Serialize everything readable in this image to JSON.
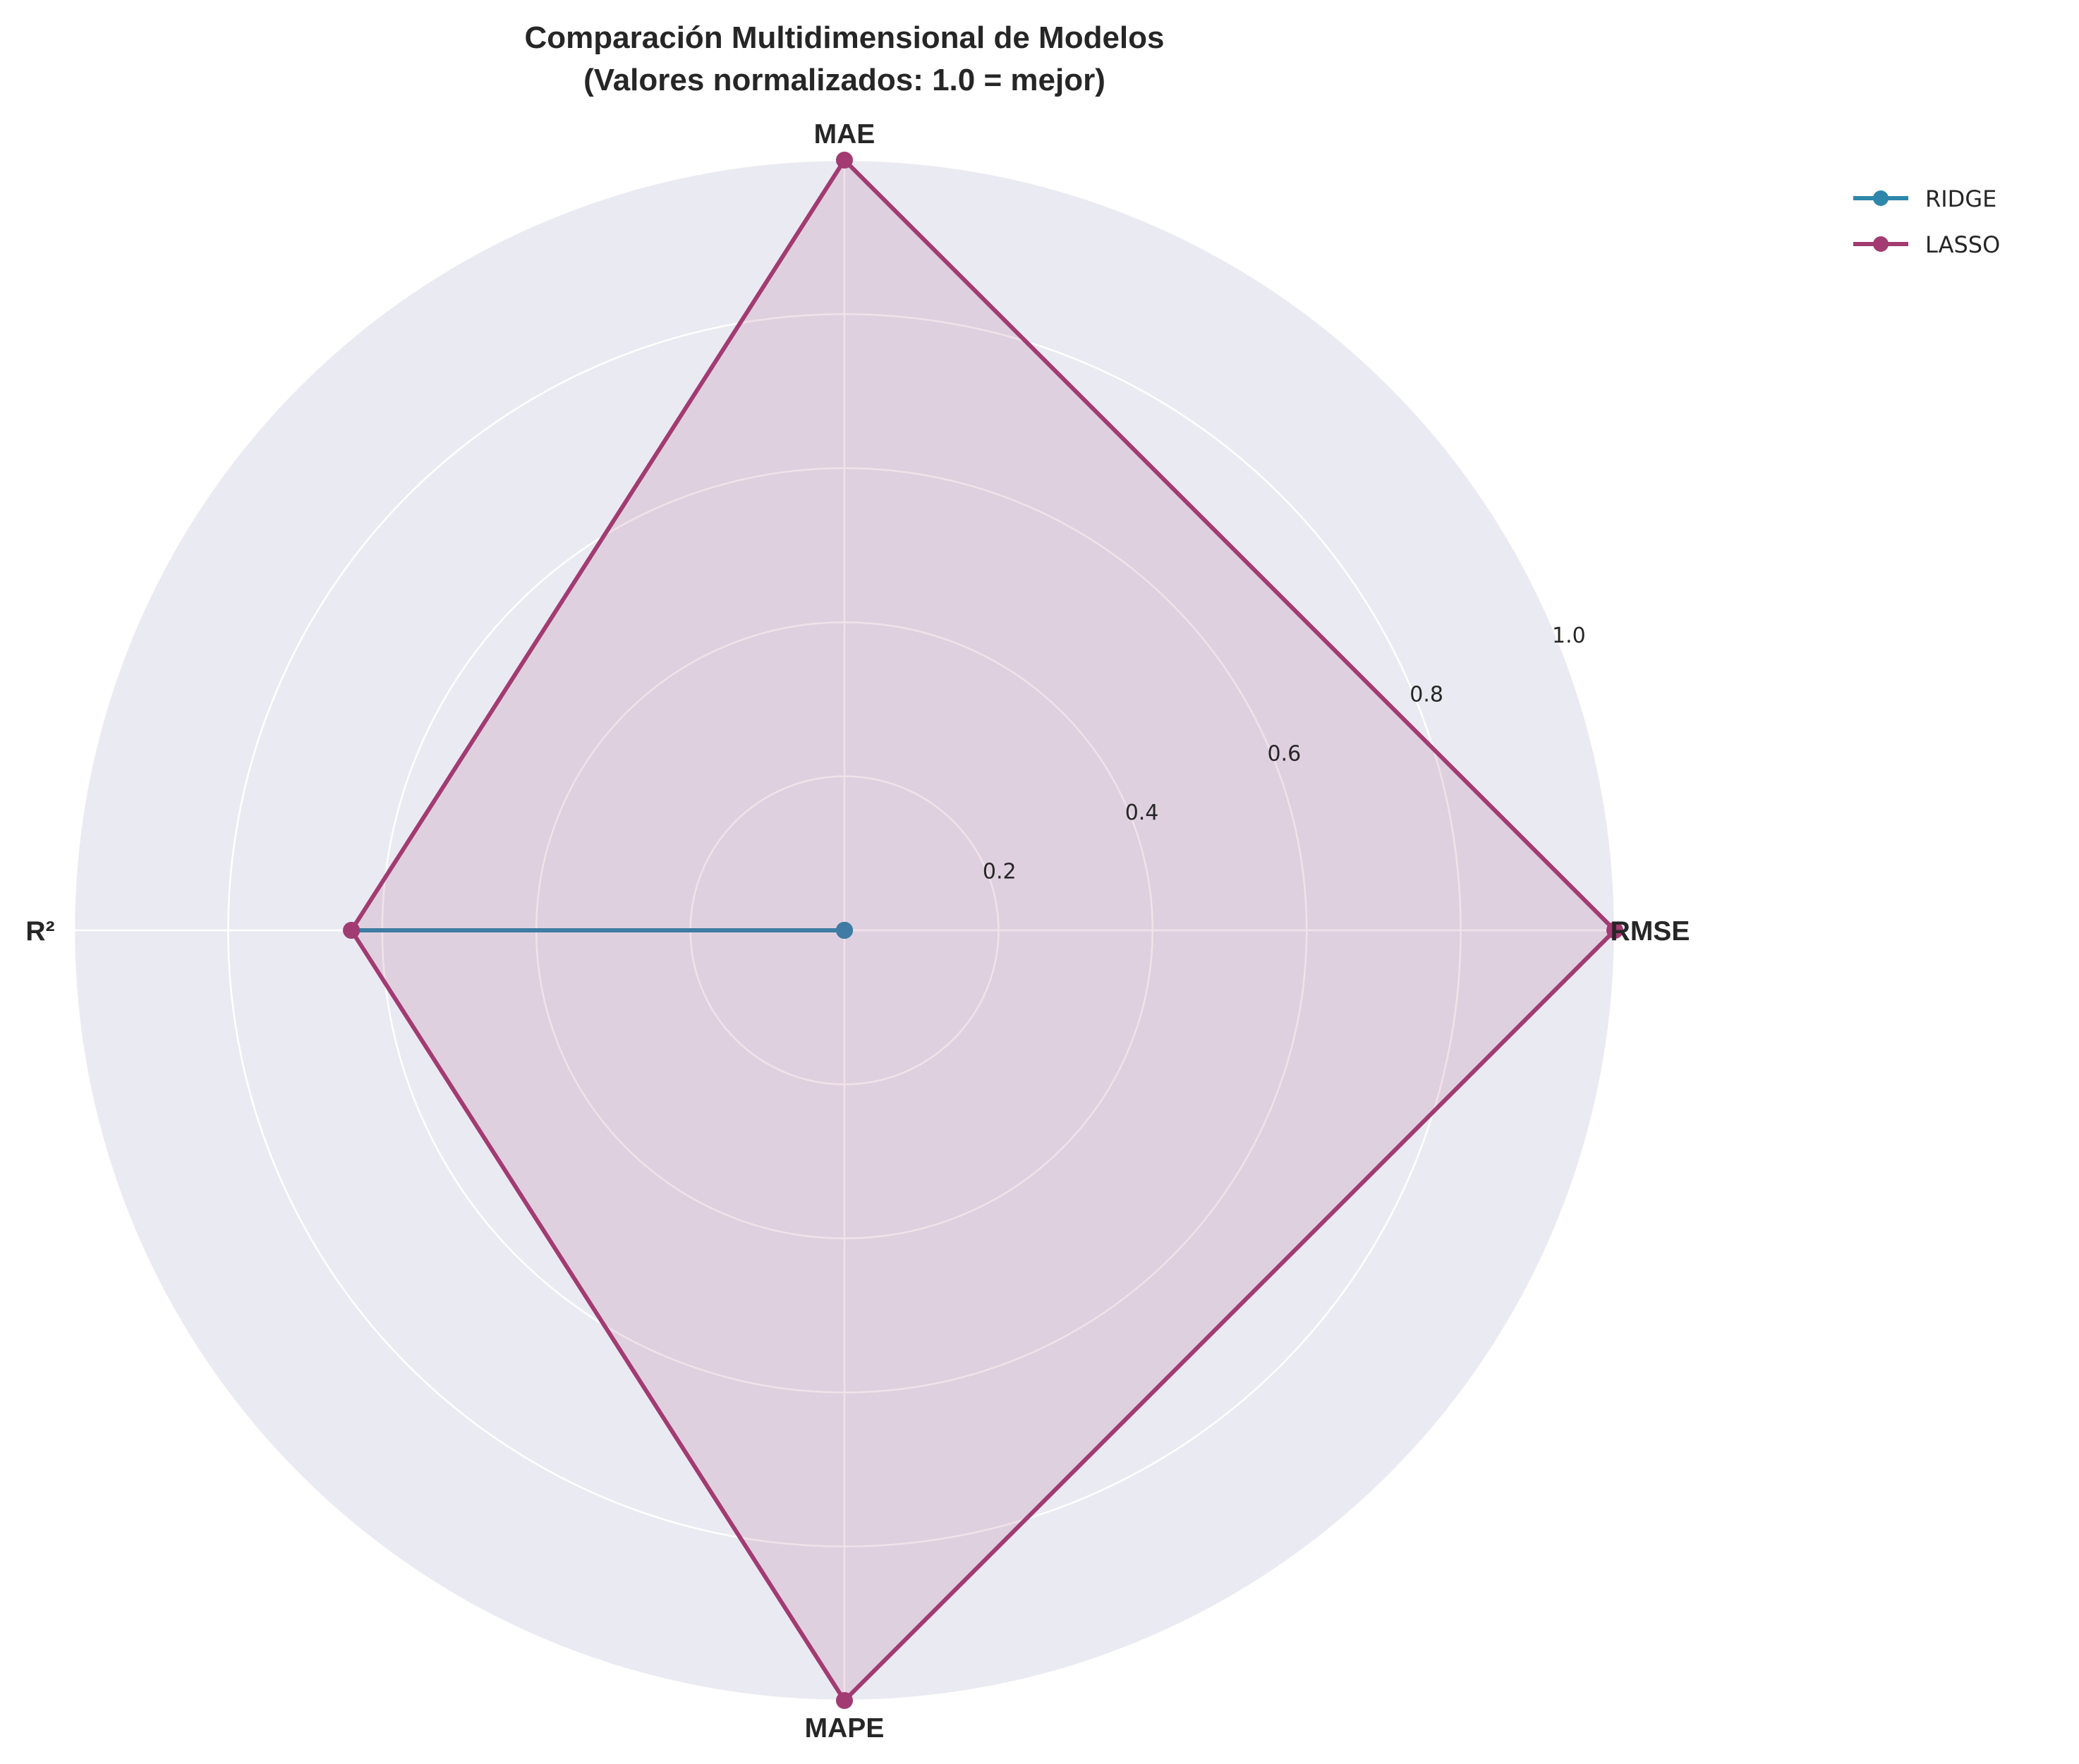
{
  "chart_data": {
    "type": "radar",
    "title": "Comparación Multidimensional de Modelos",
    "subtitle": "(Valores normalizados: 1.0 = mejor)",
    "axes": [
      "RMSE",
      "MAE",
      "R²",
      "MAPE"
    ],
    "rlim": [
      0,
      1.0
    ],
    "rticks": [
      0.2,
      0.4,
      0.6,
      0.8,
      1.0
    ],
    "rtick_labels": [
      "0.2",
      "0.4",
      "0.6",
      "0.8",
      "1.0"
    ],
    "grid": true,
    "legend_position": "top-right",
    "series": [
      {
        "name": "RIDGE",
        "values": [
          0.0,
          0.0,
          0.64,
          0.0
        ],
        "color": "#2e86ab",
        "filled": false
      },
      {
        "name": "LASSO",
        "values": [
          1.0,
          1.0,
          0.64,
          1.0
        ],
        "color": "#a23b72",
        "filled": true
      }
    ]
  },
  "colors": {
    "plot_background": "#eaeaf2",
    "grid": "#ffffff",
    "text": "#262626"
  }
}
